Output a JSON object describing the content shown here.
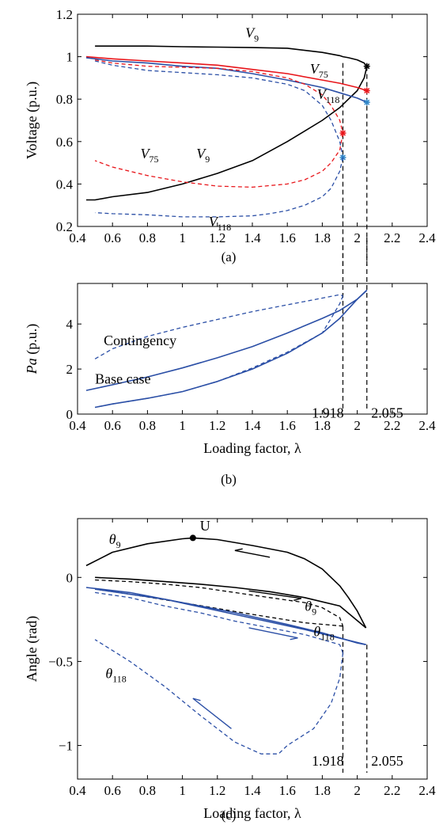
{
  "figure": {
    "panel_labels": [
      "(a)",
      "(b)",
      "(c)"
    ]
  },
  "colors": {
    "black": "#000000",
    "red": "#e8161b",
    "blue": "#2b4fa6",
    "blue_star": "#2f86c8",
    "red_star": "#e8161b"
  },
  "chart_data": [
    {
      "panel": "(a)",
      "type": "line",
      "ylabel": "Voltage (p.u.)",
      "xlabel": "",
      "xlim": [
        0.4,
        2.4
      ],
      "ylim": [
        0.2,
        1.2
      ],
      "xticks": [
        "0.4",
        "0.6",
        "0.8",
        "1",
        "1.2",
        "1.4",
        "1.6",
        "1.8",
        "2",
        "2.2",
        "2.4"
      ],
      "yticks": [
        "0.2",
        "0.4",
        "0.6",
        "0.8",
        "1",
        "1.2"
      ],
      "grid": false,
      "vlines": [
        1.918,
        2.055
      ],
      "annotations": [
        {
          "base": "V",
          "sub": "9",
          "x": 1.36,
          "y": 1.09
        },
        {
          "base": "V",
          "sub": "75",
          "x": 1.73,
          "y": 0.92
        },
        {
          "base": "V",
          "sub": "118",
          "x": 1.77,
          "y": 0.8
        },
        {
          "base": "V",
          "sub": "75",
          "x": 0.76,
          "y": 0.52
        },
        {
          "base": "V",
          "sub": "9",
          "x": 1.08,
          "y": 0.52
        },
        {
          "base": "V",
          "sub": "118",
          "x": 1.15,
          "y": 0.2
        }
      ],
      "series": [
        {
          "color": "black",
          "dash": false,
          "star": [
            2.055,
            0.955
          ],
          "x": [
            0.5,
            0.8,
            1.0,
            1.2,
            1.4,
            1.6,
            1.8,
            1.9,
            1.918,
            1.95,
            2.0,
            2.04,
            2.055
          ],
          "y": [
            1.05,
            1.05,
            1.047,
            1.045,
            1.043,
            1.04,
            1.02,
            1.005,
            1.0,
            0.995,
            0.985,
            0.97,
            0.955
          ]
        },
        {
          "color": "black",
          "dash": false,
          "x": [
            2.055,
            2.04,
            2.0,
            1.95,
            1.9,
            1.8,
            1.6,
            1.4,
            1.2,
            1.0,
            0.8,
            0.6,
            0.5,
            0.45
          ],
          "y": [
            0.955,
            0.9,
            0.84,
            0.8,
            0.76,
            0.7,
            0.6,
            0.51,
            0.45,
            0.4,
            0.36,
            0.34,
            0.325,
            0.325
          ]
        },
        {
          "color": "red",
          "dash": false,
          "star": [
            2.055,
            0.84
          ],
          "x": [
            0.45,
            0.6,
            0.8,
            1.0,
            1.2,
            1.4,
            1.6,
            1.8,
            1.9,
            2.0,
            2.055
          ],
          "y": [
            1.0,
            0.99,
            0.98,
            0.97,
            0.96,
            0.94,
            0.92,
            0.89,
            0.875,
            0.855,
            0.84
          ]
        },
        {
          "color": "blue",
          "dash": false,
          "star": [
            2.055,
            0.785
          ],
          "x": [
            0.45,
            0.6,
            0.8,
            1.0,
            1.2,
            1.4,
            1.6,
            1.8,
            1.9,
            2.0,
            2.055
          ],
          "y": [
            0.995,
            0.98,
            0.97,
            0.955,
            0.945,
            0.92,
            0.89,
            0.855,
            0.83,
            0.805,
            0.785
          ]
        },
        {
          "color": "red",
          "dash": true,
          "star": [
            1.918,
            0.64
          ],
          "x": [
            0.5,
            0.6,
            0.8,
            1.0,
            1.2,
            1.4,
            1.6,
            1.7,
            1.8,
            1.85,
            1.9,
            1.918
          ],
          "y": [
            0.985,
            0.97,
            0.955,
            0.95,
            0.945,
            0.93,
            0.9,
            0.87,
            0.82,
            0.77,
            0.7,
            0.64
          ]
        },
        {
          "color": "red",
          "dash": true,
          "x": [
            1.918,
            1.9,
            1.85,
            1.8,
            1.7,
            1.6,
            1.4,
            1.2,
            1.0,
            0.8,
            0.6,
            0.5
          ],
          "y": [
            0.64,
            0.56,
            0.5,
            0.46,
            0.42,
            0.4,
            0.385,
            0.39,
            0.41,
            0.44,
            0.48,
            0.51
          ]
        },
        {
          "color": "blue",
          "dash": true,
          "star": [
            1.918,
            0.525
          ],
          "x": [
            0.5,
            0.6,
            0.8,
            1.0,
            1.2,
            1.4,
            1.6,
            1.7,
            1.8,
            1.85,
            1.9,
            1.918
          ],
          "y": [
            0.98,
            0.96,
            0.935,
            0.925,
            0.915,
            0.9,
            0.87,
            0.84,
            0.77,
            0.7,
            0.6,
            0.525
          ]
        },
        {
          "color": "blue",
          "dash": true,
          "x": [
            1.918,
            1.9,
            1.85,
            1.8,
            1.7,
            1.6,
            1.5,
            1.4,
            1.2,
            1.0,
            0.8,
            0.6,
            0.5
          ],
          "y": [
            0.525,
            0.46,
            0.38,
            0.34,
            0.3,
            0.275,
            0.26,
            0.25,
            0.245,
            0.245,
            0.255,
            0.26,
            0.265
          ]
        }
      ]
    },
    {
      "panel": "(b)",
      "type": "line",
      "ylabel_base": "Pa",
      "ylabel_rest": " (p.u.)",
      "xlabel": "Loading factor, λ",
      "xlim": [
        0.4,
        2.4
      ],
      "ylim": [
        0,
        5.8
      ],
      "xticks": [
        "0.4",
        "0.6",
        "0.8",
        "1",
        "1.2",
        "1.4",
        "1.6",
        "1.8",
        "2",
        "2.2",
        "2.4"
      ],
      "yticks": [
        "0",
        "2",
        "4"
      ],
      "ytick_values": [
        0,
        2,
        4
      ],
      "grid": false,
      "vlines": [
        1.918,
        2.055
      ],
      "annotations": [
        {
          "text": "Contingency",
          "x": 0.55,
          "y": 3.05
        },
        {
          "text": "Base case",
          "x": 0.5,
          "y": 1.35
        },
        {
          "text": "1.918",
          "x": 1.74,
          "y": -0.15
        },
        {
          "text": "2.055",
          "x": 2.08,
          "y": -0.15
        }
      ],
      "series": [
        {
          "color": "blue",
          "dash": false,
          "x": [
            0.45,
            0.6,
            0.8,
            1.0,
            1.2,
            1.4,
            1.6,
            1.8,
            1.9,
            2.0,
            2.055
          ],
          "y": [
            1.05,
            1.3,
            1.65,
            2.05,
            2.5,
            3.0,
            3.6,
            4.25,
            4.6,
            5.1,
            5.5
          ]
        },
        {
          "color": "blue",
          "dash": false,
          "x": [
            2.055,
            2.0,
            1.9,
            1.8,
            1.6,
            1.4,
            1.2,
            1.0,
            0.8,
            0.6,
            0.5
          ],
          "y": [
            5.5,
            5.1,
            4.25,
            3.6,
            2.7,
            2.0,
            1.45,
            1.0,
            0.7,
            0.45,
            0.3
          ]
        },
        {
          "color": "blue",
          "dash": true,
          "x": [
            0.5,
            0.6,
            0.8,
            1.0,
            1.2,
            1.4,
            1.6,
            1.8,
            1.9,
            1.918
          ],
          "y": [
            2.45,
            2.9,
            3.45,
            3.85,
            4.2,
            4.55,
            4.85,
            5.15,
            5.3,
            5.25
          ]
        },
        {
          "color": "blue",
          "dash": true,
          "x": [
            1.918,
            1.9,
            1.8,
            1.6,
            1.4,
            1.2,
            1.0,
            0.8,
            0.6,
            0.5
          ],
          "y": [
            5.25,
            4.9,
            3.6,
            2.75,
            2.05,
            1.45,
            1.0,
            0.7,
            0.45,
            0.3
          ]
        }
      ]
    },
    {
      "panel": "(c)",
      "type": "line",
      "ylabel": "Angle (rad)",
      "xlabel": "Loading factor, λ",
      "xlim": [
        0.4,
        2.4
      ],
      "ylim": [
        -1.2,
        0.35
      ],
      "xticks": [
        "0.4",
        "0.6",
        "0.8",
        "1",
        "1.2",
        "1.4",
        "1.6",
        "1.8",
        "2",
        "2.2",
        "2.4"
      ],
      "yticks": [
        "-1",
        "-0.5",
        "0"
      ],
      "ytick_values": [
        -1,
        -0.5,
        0
      ],
      "grid": false,
      "vlines": [
        1.918,
        2.055
      ],
      "point_U": [
        1.06,
        0.235
      ],
      "annotations": [
        {
          "base": "θ",
          "sub": "9",
          "x": 0.58,
          "y": 0.2
        },
        {
          "text": "U",
          "x": 1.1,
          "y": 0.28
        },
        {
          "base": "θ",
          "sub": "9",
          "x": 1.7,
          "y": -0.2
        },
        {
          "base": "θ",
          "sub": "118",
          "x": 1.75,
          "y": -0.35
        },
        {
          "base": "θ",
          "sub": "118",
          "x": 0.56,
          "y": -0.6
        },
        {
          "text": "1.918",
          "x": 1.74,
          "y": -1.12
        },
        {
          "text": "2.055",
          "x": 2.08,
          "y": -1.12
        }
      ],
      "series": [
        {
          "color": "black",
          "dash": false,
          "x": [
            0.45,
            0.6,
            0.8,
            1.0,
            1.06,
            1.2,
            1.4,
            1.6,
            1.7,
            1.8,
            1.9,
            1.95,
            2.0,
            2.05
          ],
          "y": [
            0.07,
            0.15,
            0.2,
            0.23,
            0.235,
            0.225,
            0.19,
            0.15,
            0.11,
            0.05,
            -0.05,
            -0.12,
            -0.2,
            -0.3
          ]
        },
        {
          "color": "black",
          "dash": false,
          "x": [
            2.05,
            1.9,
            1.7,
            1.5,
            1.3,
            1.1,
            0.9,
            0.7,
            0.5
          ],
          "y": [
            -0.3,
            -0.17,
            -0.12,
            -0.085,
            -0.06,
            -0.04,
            -0.025,
            -0.01,
            0.0
          ]
        },
        {
          "color": "black",
          "dash": true,
          "x": [
            0.5,
            0.7,
            0.9,
            1.1,
            1.3,
            1.5,
            1.7,
            1.8,
            1.9,
            1.918
          ],
          "y": [
            -0.015,
            -0.025,
            -0.04,
            -0.06,
            -0.09,
            -0.12,
            -0.15,
            -0.18,
            -0.24,
            -0.29
          ]
        },
        {
          "color": "black",
          "dash": true,
          "x": [
            1.918,
            1.7,
            1.4,
            1.0,
            0.7,
            0.5
          ],
          "y": [
            -0.29,
            -0.27,
            -0.22,
            -0.15,
            -0.1,
            -0.07
          ]
        },
        {
          "color": "blue",
          "dash": false,
          "x": [
            0.45,
            0.7,
            1.0,
            1.3,
            1.6,
            1.8,
            1.9,
            2.0,
            2.05
          ],
          "y": [
            -0.06,
            -0.09,
            -0.15,
            -0.21,
            -0.28,
            -0.33,
            -0.36,
            -0.39,
            -0.4
          ]
        },
        {
          "color": "blue",
          "dash": false,
          "x": [
            2.05,
            1.7,
            1.3,
            0.9,
            0.5
          ],
          "y": [
            -0.4,
            -0.31,
            -0.22,
            -0.13,
            -0.07
          ]
        },
        {
          "color": "blue",
          "dash": true,
          "x": [
            0.5,
            0.7,
            0.9,
            1.1,
            1.3,
            1.5,
            1.7,
            1.8,
            1.9,
            1.918
          ],
          "y": [
            -0.09,
            -0.12,
            -0.17,
            -0.21,
            -0.26,
            -0.3,
            -0.34,
            -0.37,
            -0.4,
            -0.45
          ]
        },
        {
          "color": "blue",
          "dash": true,
          "x": [
            1.918,
            1.9,
            1.85,
            1.75,
            1.6,
            1.55,
            1.45,
            1.3,
            1.1,
            0.9,
            0.7,
            0.5
          ],
          "y": [
            -0.45,
            -0.6,
            -0.75,
            -0.9,
            -1.0,
            -1.05,
            -1.05,
            -0.98,
            -0.82,
            -0.65,
            -0.5,
            -0.37
          ]
        }
      ],
      "arrows": [
        {
          "color": "black",
          "x1": 1.5,
          "y1": 0.12,
          "x2": 1.3,
          "y2": 0.16
        },
        {
          "color": "black",
          "x1": 1.38,
          "y1": -0.08,
          "x2": 1.68,
          "y2": -0.125
        },
        {
          "color": "blue",
          "x1": 1.38,
          "y1": -0.3,
          "x2": 1.66,
          "y2": -0.36
        },
        {
          "color": "blue",
          "x1": 1.28,
          "y1": -0.9,
          "x2": 1.06,
          "y2": -0.72
        }
      ]
    }
  ]
}
